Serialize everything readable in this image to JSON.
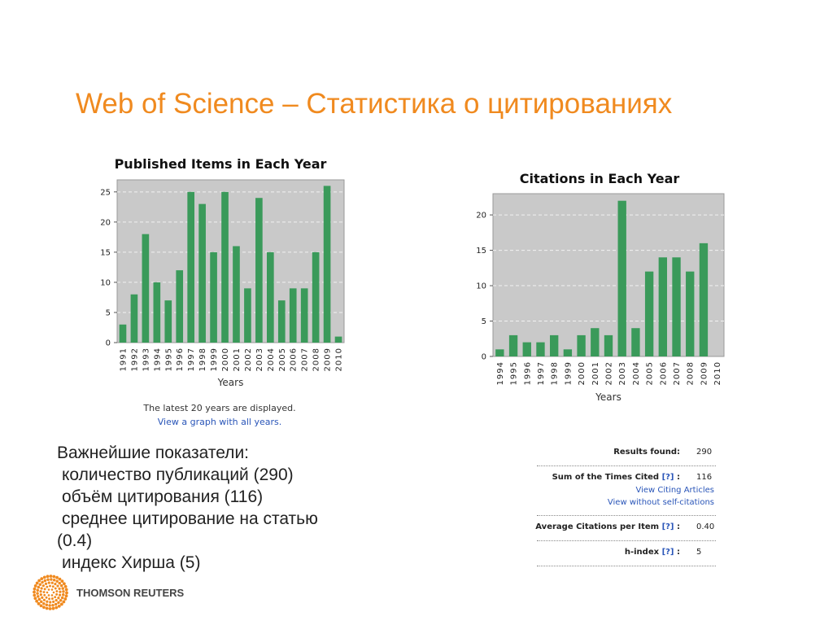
{
  "slide": {
    "title": "Web of Science – Статистика о цитированиях"
  },
  "chart_data": [
    {
      "type": "bar",
      "title": "Published Items in Each Year",
      "xlabel": "Years",
      "ylabel": "",
      "categories": [
        "1991",
        "1992",
        "1993",
        "1994",
        "1995",
        "1996",
        "1997",
        "1998",
        "1999",
        "2000",
        "2001",
        "2002",
        "2003",
        "2004",
        "2005",
        "2006",
        "2007",
        "2008",
        "2009",
        "2010"
      ],
      "values": [
        3,
        8,
        18,
        10,
        7,
        12,
        25,
        23,
        15,
        25,
        16,
        9,
        24,
        15,
        7,
        9,
        9,
        15,
        26,
        1
      ],
      "ylim": [
        0,
        27
      ],
      "yticks": [
        0,
        5,
        10,
        15,
        20,
        25
      ],
      "grid": true,
      "bar_color": "#3a9a5a",
      "plot_bg": "#c9c9c9"
    },
    {
      "type": "bar",
      "title": "Citations in Each Year",
      "xlabel": "Years",
      "ylabel": "",
      "categories": [
        "1994",
        "1995",
        "1996",
        "1997",
        "1998",
        "1999",
        "2000",
        "2001",
        "2002",
        "2003",
        "2004",
        "2005",
        "2006",
        "2007",
        "2008",
        "2009",
        "2010"
      ],
      "values": [
        1,
        3,
        2,
        2,
        3,
        1,
        3,
        4,
        3,
        22,
        4,
        12,
        14,
        14,
        12,
        16,
        0
      ],
      "ylim": [
        0,
        23
      ],
      "yticks": [
        0,
        5,
        10,
        15,
        20
      ],
      "grid": true,
      "bar_color": "#3a9a5a",
      "plot_bg": "#c9c9c9"
    }
  ],
  "chart_notes": {
    "latest": "The latest 20 years are displayed.",
    "view_all": "View a graph with all years."
  },
  "bullets": {
    "heading": "Важнейшие показатели:",
    "item1": " количество публикаций (290)",
    "item2": " объём цитирования (116)",
    "item3a": " среднее цитирование на статью",
    "item3b": "(0.4)",
    "item4": " индекс Хирша (5)"
  },
  "stats": {
    "results_label": "Results found:",
    "results_value": "290",
    "sum_label": "Sum of the Times Cited",
    "sum_value": "116",
    "help": "[?]",
    "colon": ":",
    "view_citing": "View Citing Articles",
    "view_without": "View without self-citations",
    "avg_label": "Average Citations per Item",
    "avg_value": "0.40",
    "h_label": "h-index",
    "h_value": "5"
  },
  "footer": {
    "brand": "THOMSON REUTERS"
  },
  "colors": {
    "title": "#f08a1f",
    "link": "#2955b8",
    "bar": "#3a9a5a",
    "logo": "#f08a1f"
  }
}
